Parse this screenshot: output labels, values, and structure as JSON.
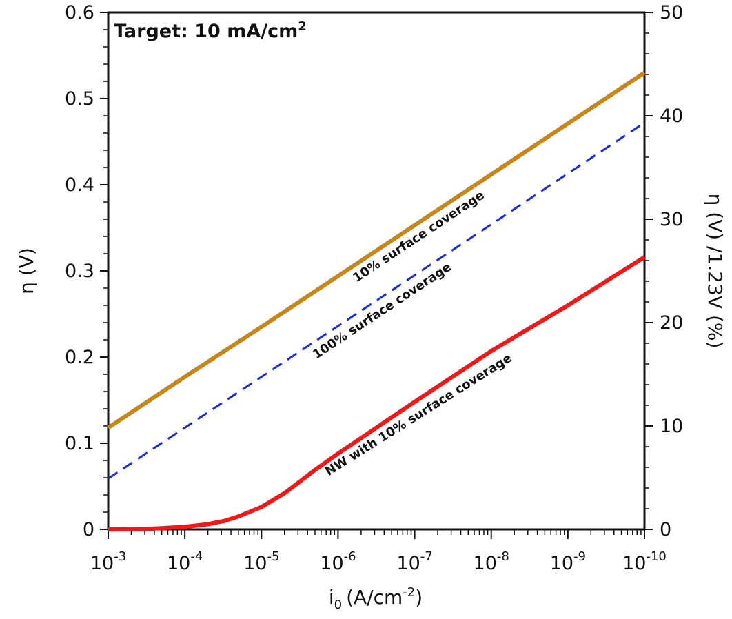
{
  "chart_data": {
    "type": "line",
    "title_box": {
      "text": "Target: 10 mA/cm",
      "superscript": "2"
    },
    "x_axis": {
      "label": "i",
      "label_subscript": "0",
      "label_unit": "(A/cm",
      "label_unit_sup": "-2",
      "label_close": ")",
      "scale": "log",
      "reversed": true,
      "range": [
        0.001,
        1e-10
      ],
      "ticks": [
        {
          "base": "10",
          "exp": "-3",
          "value": 0.001
        },
        {
          "base": "10",
          "exp": "-4",
          "value": 0.0001
        },
        {
          "base": "10",
          "exp": "-5",
          "value": 1e-05
        },
        {
          "base": "10",
          "exp": "-6",
          "value": 1e-06
        },
        {
          "base": "10",
          "exp": "-7",
          "value": 1e-07
        },
        {
          "base": "10",
          "exp": "-8",
          "value": 1e-08
        },
        {
          "base": "10",
          "exp": "-9",
          "value": 1e-09
        },
        {
          "base": "10",
          "exp": "-10",
          "value": 1e-10
        }
      ]
    },
    "y_axis_left": {
      "label": "η  (V)",
      "range": [
        0,
        0.6
      ],
      "ticks": [
        "0",
        "0.1",
        "0.2",
        "0.3",
        "0.4",
        "0.5",
        "0.6"
      ]
    },
    "y_axis_right": {
      "label": "η (V) /1.23V (%)",
      "range": [
        0,
        50
      ],
      "ticks": [
        "0",
        "10",
        "20",
        "30",
        "40",
        "50"
      ]
    },
    "grid": false,
    "series": [
      {
        "key": "ten",
        "color": "#C8861A",
        "style": "solid",
        "annotation": "10% surface coverage",
        "annotation_at": 1e-07,
        "points": [
          [
            0.001,
            0.118
          ],
          [
            0.0001,
            0.177
          ],
          [
            1e-05,
            0.235
          ],
          [
            1e-06,
            0.294
          ],
          [
            1e-07,
            0.353
          ],
          [
            1e-08,
            0.412
          ],
          [
            1e-09,
            0.471
          ],
          [
            1e-10,
            0.53
          ]
        ]
      },
      {
        "key": "hundred",
        "color": "#1A2BE0",
        "style": "dashed",
        "annotation": "100% surface coverage",
        "annotation_at": 3e-07,
        "points": [
          [
            0.001,
            0.059
          ],
          [
            0.0001,
            0.118
          ],
          [
            1e-05,
            0.177
          ],
          [
            1e-06,
            0.236
          ],
          [
            1e-07,
            0.295
          ],
          [
            1e-08,
            0.354
          ],
          [
            1e-09,
            0.413
          ],
          [
            1e-10,
            0.472
          ]
        ]
      },
      {
        "key": "nw",
        "color": "#F01818",
        "style": "solid",
        "annotation": "NW with 10% surface coverage",
        "annotation_at": 1e-07,
        "points": [
          [
            0.001,
            0.0
          ],
          [
            0.0003,
            0.0005
          ],
          [
            0.0001,
            0.003
          ],
          [
            5e-05,
            0.006
          ],
          [
            3e-05,
            0.01
          ],
          [
            2e-05,
            0.015
          ],
          [
            1e-05,
            0.026
          ],
          [
            5e-06,
            0.042
          ],
          [
            3e-06,
            0.057
          ],
          [
            2e-06,
            0.069
          ],
          [
            1e-06,
            0.088
          ],
          [
            5e-07,
            0.106
          ],
          [
            2e-07,
            0.13
          ],
          [
            1e-07,
            0.148
          ],
          [
            1e-08,
            0.207
          ],
          [
            1e-09,
            0.26
          ],
          [
            1e-10,
            0.316
          ]
        ]
      }
    ]
  }
}
